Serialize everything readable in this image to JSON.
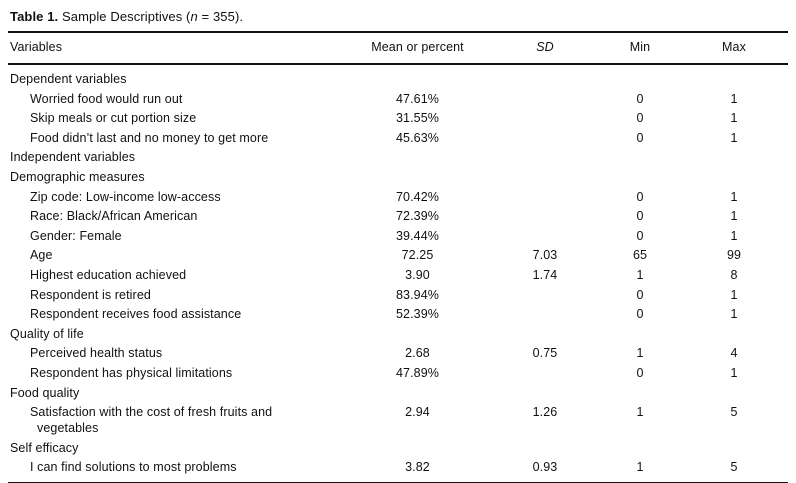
{
  "title": {
    "label": "Table 1.",
    "pre": " Sample Descriptives (",
    "n": "n",
    "post": " = 355)."
  },
  "table": {
    "columns": [
      "Variables",
      "Mean or percent",
      "SD",
      "Min",
      "Max"
    ],
    "rows": [
      {
        "label": "Dependent variables",
        "indent": false,
        "values": [
          "",
          "",
          "",
          ""
        ]
      },
      {
        "label": "Worried food would run out",
        "indent": true,
        "values": [
          "47.61%",
          "",
          "0",
          "1"
        ]
      },
      {
        "label": "Skip meals or cut portion size",
        "indent": true,
        "values": [
          "31.55%",
          "",
          "0",
          "1"
        ]
      },
      {
        "label": "Food didn’t last and no money to get more",
        "indent": true,
        "values": [
          "45.63%",
          "",
          "0",
          "1"
        ]
      },
      {
        "label": "Independent variables",
        "indent": false,
        "values": [
          "",
          "",
          "",
          ""
        ]
      },
      {
        "label": "Demographic measures",
        "indent": false,
        "values": [
          "",
          "",
          "",
          ""
        ]
      },
      {
        "label": "Zip code: Low-income low-access",
        "indent": true,
        "values": [
          "70.42%",
          "",
          "0",
          "1"
        ]
      },
      {
        "label": "Race: Black/African American",
        "indent": true,
        "values": [
          "72.39%",
          "",
          "0",
          "1"
        ]
      },
      {
        "label": "Gender: Female",
        "indent": true,
        "values": [
          "39.44%",
          "",
          "0",
          "1"
        ]
      },
      {
        "label": "Age",
        "indent": true,
        "values": [
          "72.25",
          "7.03",
          "65",
          "99"
        ]
      },
      {
        "label": "Highest education achieved",
        "indent": true,
        "values": [
          "3.90",
          "1.74",
          "1",
          "8"
        ]
      },
      {
        "label": "Respondent is retired",
        "indent": true,
        "values": [
          "83.94%",
          "",
          "0",
          "1"
        ]
      },
      {
        "label": "Respondent receives food assistance",
        "indent": true,
        "values": [
          "52.39%",
          "",
          "0",
          "1"
        ]
      },
      {
        "label": "Quality of life",
        "indent": false,
        "values": [
          "",
          "",
          "",
          ""
        ]
      },
      {
        "label": "Perceived health status",
        "indent": true,
        "values": [
          "2.68",
          "0.75",
          "1",
          "4"
        ]
      },
      {
        "label": "Respondent has physical limitations",
        "indent": true,
        "values": [
          "47.89%",
          "",
          "0",
          "1"
        ]
      },
      {
        "label": "Food quality",
        "indent": false,
        "values": [
          "",
          "",
          "",
          ""
        ]
      },
      {
        "label": "Satisfaction with the cost of fresh fruits and\nvegetables",
        "indent": true,
        "values": [
          "2.94",
          "1.26",
          "1",
          "5"
        ]
      },
      {
        "label": "Self efficacy",
        "indent": false,
        "values": [
          "",
          "",
          "",
          ""
        ]
      },
      {
        "label": "I can find solutions to most problems",
        "indent": true,
        "values": [
          "3.82",
          "0.93",
          "1",
          "5"
        ]
      }
    ]
  }
}
